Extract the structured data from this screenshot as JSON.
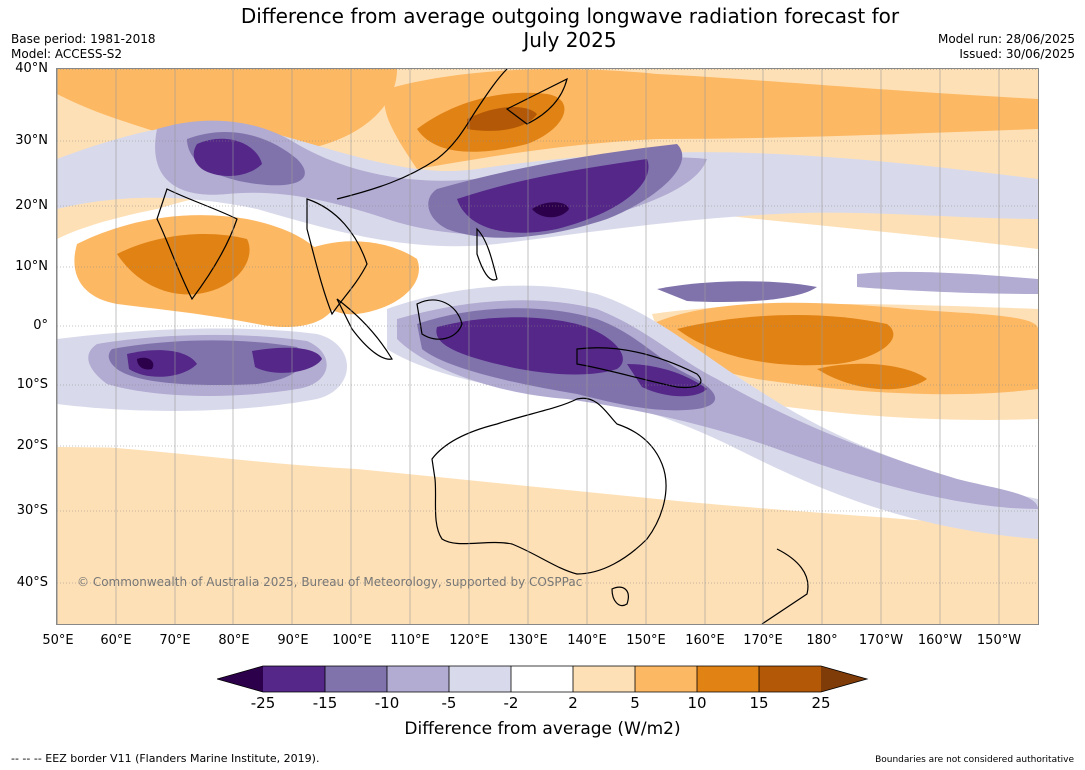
{
  "header": {
    "title_line1": "Difference from average outgoing longwave radiation forecast for",
    "title_line2": "July 2025",
    "base_period": "Base period: 1981-2018",
    "model": "Model: ACCESS-S2",
    "model_run": "Model run: 28/06/2025",
    "issued": "Issued: 30/06/2025"
  },
  "map": {
    "lat_labels": [
      "40°N",
      "30°N",
      "20°N",
      "10°N",
      "0°",
      "10°S",
      "20°S",
      "30°S",
      "40°S"
    ],
    "lon_labels": [
      "50°E",
      "60°E",
      "70°E",
      "80°E",
      "90°E",
      "100°E",
      "110°E",
      "120°E",
      "130°E",
      "140°E",
      "150°E",
      "160°E",
      "170°E",
      "180°",
      "170°W",
      "160°W",
      "150°W"
    ],
    "copyright": "© Commonwealth of Australia 2025, Bureau of Meteorology, supported by COSPPac"
  },
  "legend": {
    "label": "Difference from average (W/m2)",
    "ticks": [
      "-25",
      "-15",
      "-10",
      "-5",
      "-2",
      "2",
      "5",
      "10",
      "15",
      "25"
    ],
    "colors": [
      "#2d004b",
      "#542788",
      "#8073ac",
      "#b2abd2",
      "#d8daeb",
      "#ffffff",
      "#fee0b6",
      "#fdb863",
      "#e08214",
      "#b35806",
      "#7f3b08"
    ]
  },
  "footer": {
    "eez_note": "--  --  -- EEZ border V11 (Flanders Marine Institute, 2019).",
    "disclaimer": "Boundaries are not considered authoritative"
  }
}
